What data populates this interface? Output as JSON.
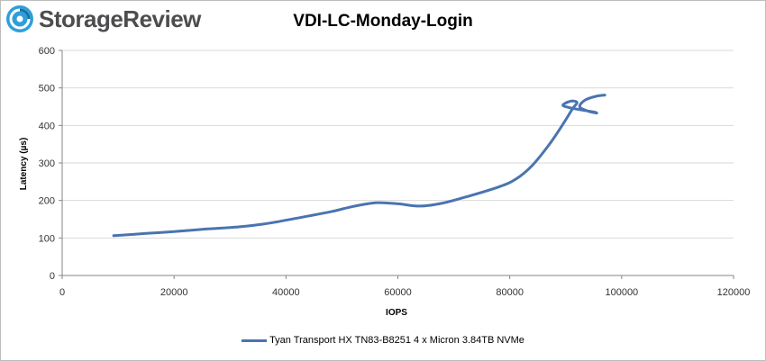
{
  "logo": {
    "text": "StorageReview",
    "icon": "storagereview-logo-icon"
  },
  "colors": {
    "series": "#4a74b0",
    "logo_accent": "#2e9fd9",
    "grid": "#d9d9d9",
    "axis": "#868686"
  },
  "chart_data": {
    "type": "line",
    "title": "VDI-LC-Monday-Login",
    "xlabel": "IOPS",
    "ylabel": "Latency (µs)",
    "xlim": [
      0,
      120000
    ],
    "ylim": [
      0,
      600
    ],
    "xticks": [
      "0",
      "20000",
      "40000",
      "60000",
      "80000",
      "100000",
      "120000"
    ],
    "yticks": [
      "0",
      "100",
      "200",
      "300",
      "400",
      "500",
      "600"
    ],
    "grid": "horizontal",
    "legend": "bottom",
    "series": [
      {
        "name": "Tyan Transport HX TN83-B8251 4 x Micron 3.84TB NVMe",
        "points": [
          [
            9200,
            106
          ],
          [
            15000,
            112
          ],
          [
            20000,
            117
          ],
          [
            26000,
            124
          ],
          [
            31000,
            129
          ],
          [
            36000,
            137
          ],
          [
            42000,
            153
          ],
          [
            48000,
            170
          ],
          [
            52000,
            184
          ],
          [
            56000,
            194
          ],
          [
            60000,
            191
          ],
          [
            64000,
            185
          ],
          [
            68000,
            193
          ],
          [
            73000,
            213
          ],
          [
            78000,
            236
          ],
          [
            81000,
            256
          ],
          [
            84000,
            293
          ],
          [
            87000,
            348
          ],
          [
            89500,
            403
          ],
          [
            91200,
            444
          ],
          [
            92000,
            460
          ],
          [
            91500,
            465
          ],
          [
            90500,
            463
          ],
          [
            89500,
            454
          ],
          [
            90500,
            448
          ],
          [
            92500,
            442
          ],
          [
            95000,
            436
          ],
          [
            95500,
            433
          ],
          [
            94000,
            438
          ],
          [
            92500,
            450
          ],
          [
            93500,
            468
          ],
          [
            95500,
            478
          ],
          [
            97000,
            481
          ]
        ]
      }
    ]
  }
}
